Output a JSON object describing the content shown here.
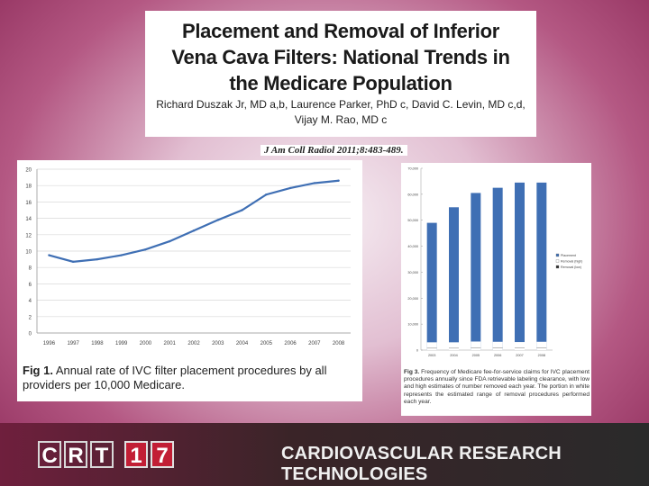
{
  "title_box": {
    "title_lines": [
      "Placement and Removal of Inferior",
      "Vena Cava Filters: National Trends in",
      "the Medicare Population"
    ],
    "authors_line1": "Richard Duszak Jr, MD a,b, Laurence Parker, PhD c, David C. Levin, MD c,d,",
    "authors_line2": "Vijay M. Rao, MD c"
  },
  "citation": "J Am Coll Radiol 2011;8:483-489.",
  "chart_data": [
    {
      "type": "line",
      "title": "",
      "x": [
        "1996",
        "1997",
        "1998",
        "1999",
        "2000",
        "2001",
        "2002",
        "2003",
        "2004",
        "2005",
        "2006",
        "2007",
        "2008"
      ],
      "values": [
        9.5,
        8.7,
        9.0,
        9.5,
        10.2,
        11.2,
        12.5,
        13.8,
        15.0,
        16.9,
        17.7,
        18.3,
        18.6
      ],
      "yticks": [
        "0",
        "2",
        "4",
        "6",
        "8",
        "10",
        "12",
        "14",
        "16",
        "18",
        "20"
      ],
      "ylim": [
        0,
        20
      ],
      "caption_label": "Fig 1.",
      "caption": "Annual rate of IVC filter placement procedures by all providers per 10,000 Medicare.",
      "color": "#3f6fb4"
    },
    {
      "type": "bar",
      "title": "",
      "categories": [
        "2003",
        "2004",
        "2005",
        "2006",
        "2007",
        "2008"
      ],
      "values": [
        49000,
        55000,
        60500,
        62500,
        64500,
        64500
      ],
      "removal_band": [
        3000,
        3000,
        3300,
        3200,
        3100,
        3200
      ],
      "yticks": [
        "0",
        "10,000",
        "20,000",
        "30,000",
        "40,000",
        "50,000",
        "60,000",
        "70,000"
      ],
      "ylim": [
        0,
        70000
      ],
      "legend": [
        "Placement",
        "Removal (high)",
        "Removal (low)"
      ],
      "caption_label": "Fig 3.",
      "caption": "Frequency of Medicare fee-for-service claims for IVC placement procedures annually since FDA retrievable labeling clearance, with low and high estimates of number removed each year. The portion in white represents the estimated range of removal procedures performed each year.",
      "color": "#3f6fb4"
    }
  ],
  "footer": {
    "logo_letters": [
      "C",
      "R",
      "T",
      "1",
      "7"
    ],
    "tagline": "CARDIOVASCULAR RESEARCH TECHNOLOGIES"
  }
}
